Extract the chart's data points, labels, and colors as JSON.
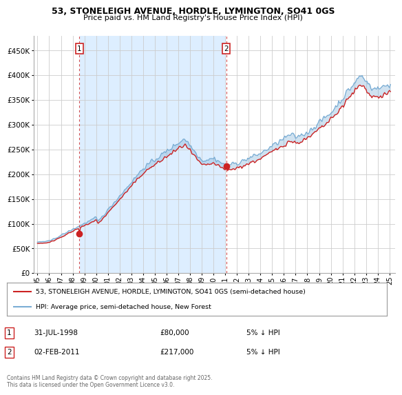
{
  "title_line1": "53, STONELEIGH AVENUE, HORDLE, LYMINGTON, SO41 0GS",
  "title_line2": "Price paid vs. HM Land Registry's House Price Index (HPI)",
  "legend_label_red": "53, STONELEIGH AVENUE, HORDLE, LYMINGTON, SO41 0GS (semi-detached house)",
  "legend_label_blue": "HPI: Average price, semi-detached house, New Forest",
  "footnote": "Contains HM Land Registry data © Crown copyright and database right 2025.\nThis data is licensed under the Open Government Licence v3.0.",
  "transaction1_label": "1",
  "transaction1_date": "31-JUL-1998",
  "transaction1_price": "£80,000",
  "transaction1_note": "5% ↓ HPI",
  "transaction2_label": "2",
  "transaction2_date": "02-FEB-2011",
  "transaction2_price": "£217,000",
  "transaction2_note": "5% ↓ HPI",
  "ylim": [
    0,
    480000
  ],
  "yticks": [
    0,
    50000,
    100000,
    150000,
    200000,
    250000,
    300000,
    350000,
    400000,
    450000
  ],
  "background_color": "#ffffff",
  "grid_color": "#cccccc",
  "red_color": "#cc2222",
  "blue_color": "#7aadd4",
  "fill_between_color": "#ddeeff",
  "tx1_x": 1998.583,
  "tx2_x": 2011.083,
  "tx1_y_red": 80000,
  "tx2_y_red": 217000,
  "xlim_left": 1994.7,
  "xlim_right": 2025.5,
  "xtick_start": 1995,
  "xtick_end": 2025
}
